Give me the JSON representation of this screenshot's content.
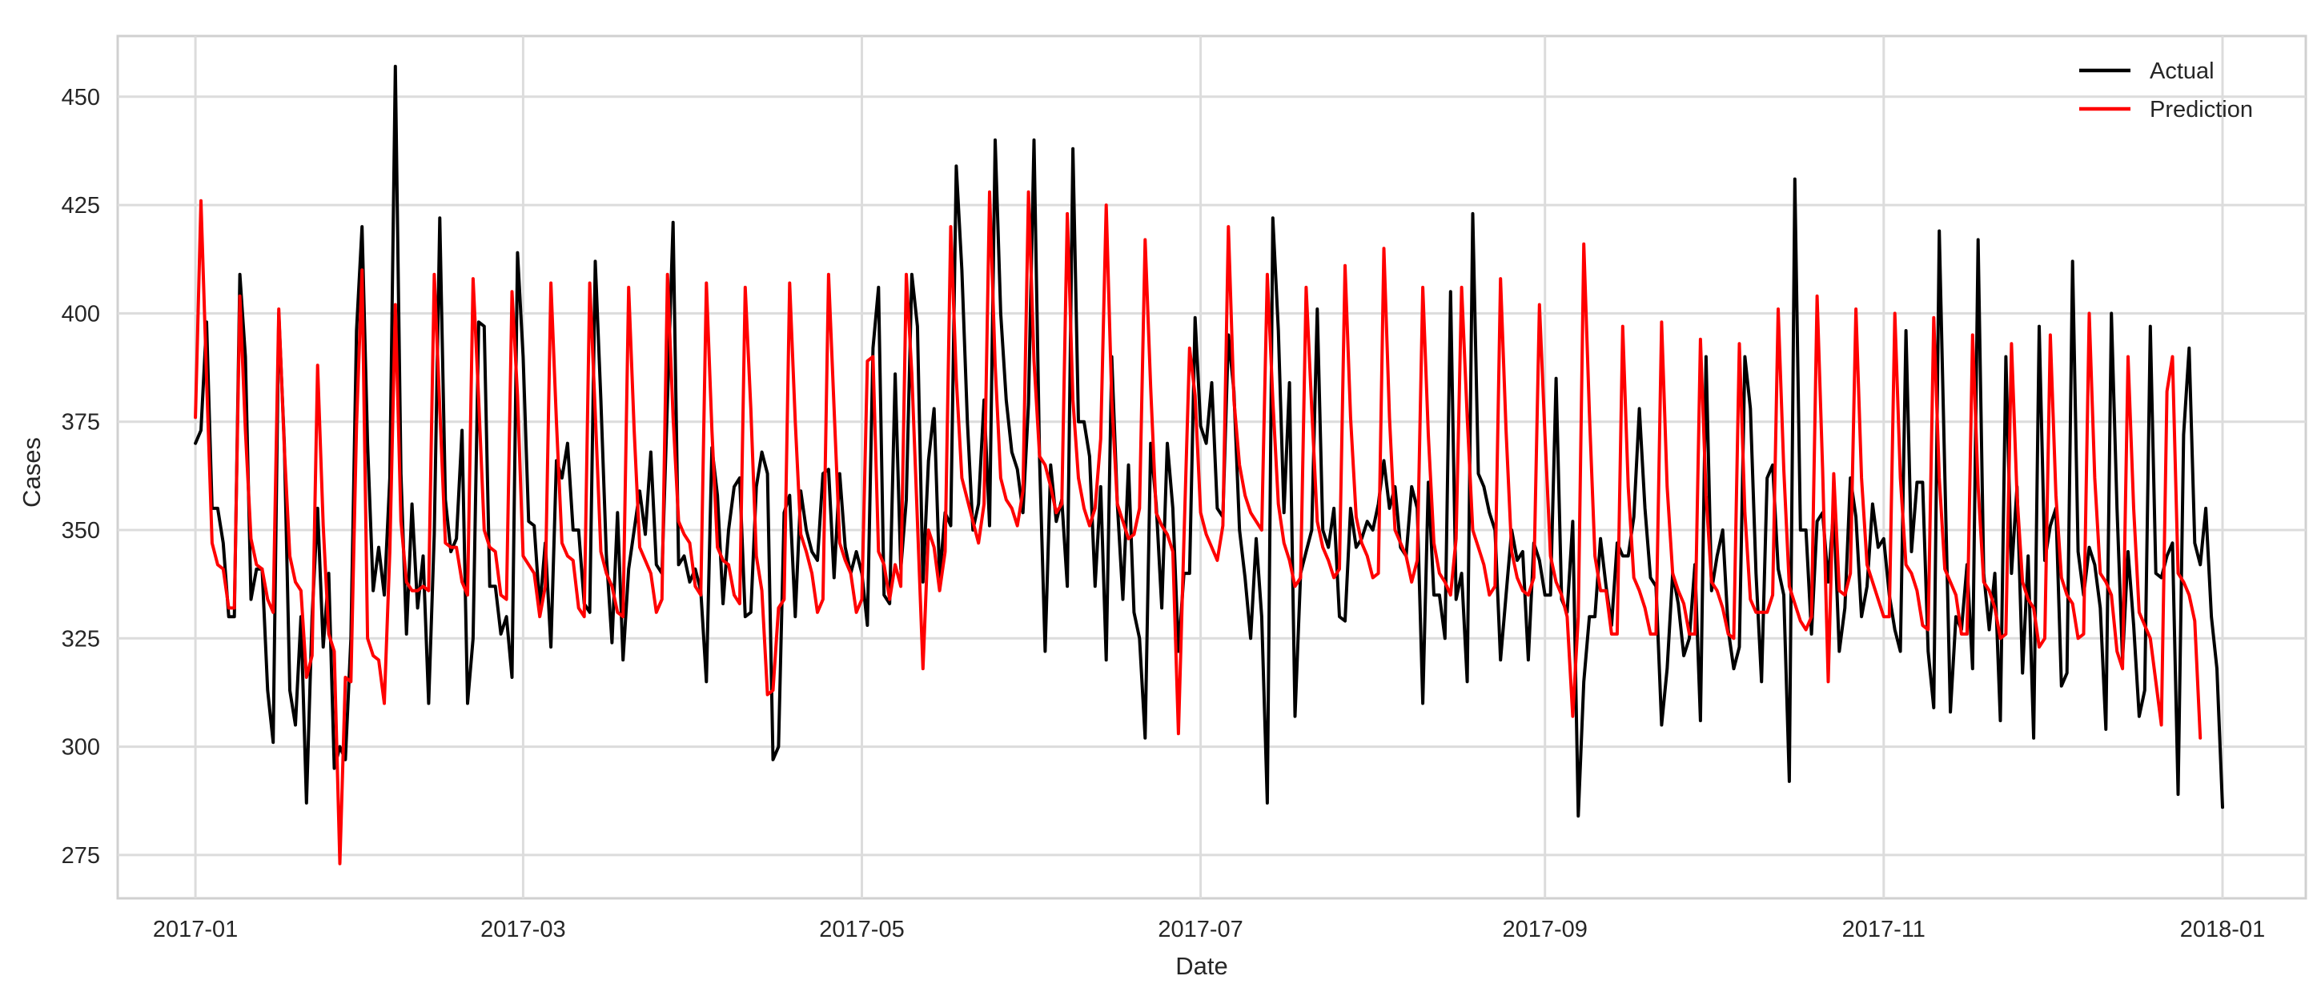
{
  "chart_data": {
    "type": "line",
    "title": "",
    "xlabel": "Date",
    "ylabel": "Cases",
    "xlim": [
      "2016-12-18",
      "2018-01-16"
    ],
    "ylim": [
      265,
      464
    ],
    "grid": true,
    "legend_position": "top-right",
    "x_ticks": [
      {
        "date": "2017-01-01",
        "label": "2017-01"
      },
      {
        "date": "2017-03-01",
        "label": "2017-03"
      },
      {
        "date": "2017-05-01",
        "label": "2017-05"
      },
      {
        "date": "2017-07-01",
        "label": "2017-07"
      },
      {
        "date": "2017-09-01",
        "label": "2017-09"
      },
      {
        "date": "2017-11-01",
        "label": "2017-11"
      },
      {
        "date": "2018-01-01",
        "label": "2018-01"
      }
    ],
    "y_ticks": [
      275,
      300,
      325,
      350,
      375,
      400,
      425,
      450
    ],
    "x_start": "2017-01-01",
    "x_step_days": 1,
    "series": [
      {
        "name": "Actual",
        "color": "#000000",
        "values": [
          370,
          373,
          398,
          355,
          355,
          347,
          330,
          330,
          409,
          390,
          334,
          341,
          341,
          313,
          301,
          400,
          370,
          313,
          305,
          330,
          287,
          330,
          355,
          323,
          340,
          295,
          300,
          297,
          325,
          396,
          420,
          370,
          336,
          346,
          335,
          362,
          457,
          363,
          326,
          356,
          332,
          344,
          310,
          349,
          422,
          357,
          345,
          348,
          373,
          310,
          325,
          398,
          397,
          337,
          337,
          326,
          330,
          316,
          414,
          390,
          352,
          351,
          332,
          347,
          323,
          366,
          362,
          370,
          350,
          350,
          333,
          331,
          412,
          380,
          344,
          324,
          354,
          320,
          341,
          350,
          359,
          349,
          368,
          342,
          340,
          380,
          421,
          342,
          344,
          338,
          341,
          336,
          315,
          369,
          358,
          333,
          350,
          360,
          362,
          330,
          331,
          360,
          368,
          363,
          297,
          300,
          354,
          358,
          330,
          359,
          350,
          345,
          343,
          363,
          364,
          339,
          363,
          346,
          340,
          345,
          340,
          328,
          392,
          406,
          335,
          333,
          386,
          341,
          357,
          409,
          397,
          338,
          366,
          378,
          339,
          354,
          351,
          434,
          410,
          375,
          350,
          356,
          380,
          351,
          440,
          400,
          380,
          368,
          364,
          354,
          379,
          440,
          366,
          322,
          365,
          352,
          357,
          337,
          438,
          375,
          375,
          367,
          337,
          360,
          320,
          390,
          356,
          334,
          365,
          331,
          325,
          302,
          370,
          356,
          332,
          370,
          355,
          322,
          340,
          340,
          399,
          374,
          370,
          384,
          355,
          353,
          395,
          382,
          350,
          339,
          325,
          348,
          330,
          287,
          422,
          396,
          354,
          384,
          307,
          340,
          345,
          350,
          401,
          350,
          346,
          355,
          330,
          329,
          355,
          346,
          348,
          352,
          350,
          356,
          366,
          355,
          360,
          346,
          344,
          360,
          355,
          310,
          361,
          335,
          335,
          325,
          405,
          334,
          340,
          315,
          423,
          363,
          360,
          354,
          350,
          320,
          335,
          350,
          343,
          345,
          320,
          347,
          343,
          335,
          335,
          385,
          334,
          331,
          352,
          284,
          315,
          330,
          330,
          348,
          337,
          328,
          347,
          344,
          344,
          353,
          378,
          355,
          339,
          337,
          305,
          318,
          340,
          333,
          321,
          325,
          342,
          306,
          390,
          336,
          344,
          350,
          327,
          318,
          323,
          390,
          378,
          340,
          315,
          362,
          365,
          341,
          335,
          292,
          431,
          350,
          350,
          326,
          352,
          354,
          338,
          355,
          322,
          332,
          362,
          353,
          330,
          337,
          356,
          346,
          348,
          335,
          327,
          322,
          396,
          345,
          361,
          361,
          322,
          309,
          419,
          363,
          308,
          330,
          327,
          342,
          318,
          417,
          340,
          327,
          340,
          306,
          390,
          340,
          360,
          317,
          344,
          302,
          397,
          343,
          351,
          355,
          314,
          317,
          412,
          345,
          335,
          346,
          342,
          332,
          304,
          400,
          355,
          320,
          345,
          328,
          307,
          313,
          397,
          340,
          339,
          344,
          347,
          289,
          372,
          392,
          347,
          342,
          355,
          330,
          318,
          286
        ]
      },
      {
        "name": "Prediction",
        "color": "#ff0000",
        "values": [
          376,
          426,
          385,
          347,
          342,
          341,
          332,
          332,
          404,
          373,
          348,
          342,
          341,
          334,
          331,
          401,
          369,
          344,
          338,
          336,
          316,
          321,
          388,
          351,
          326,
          322,
          273,
          316,
          315,
          374,
          410,
          325,
          321,
          320,
          310,
          345,
          402,
          352,
          338,
          336,
          336,
          337,
          336,
          409,
          378,
          347,
          346,
          346,
          338,
          335,
          408,
          380,
          350,
          346,
          345,
          335,
          334,
          405,
          381,
          344,
          342,
          340,
          330,
          337,
          407,
          375,
          347,
          344,
          343,
          332,
          330,
          407,
          377,
          345,
          340,
          337,
          331,
          330,
          406,
          373,
          346,
          343,
          340,
          331,
          334,
          409,
          376,
          352,
          349,
          347,
          337,
          335,
          407,
          373,
          346,
          343,
          342,
          335,
          333,
          406,
          378,
          344,
          336,
          312,
          313,
          332,
          334,
          407,
          375,
          349,
          345,
          340,
          331,
          334,
          409,
          378,
          347,
          343,
          340,
          331,
          334,
          389,
          390,
          345,
          342,
          334,
          342,
          337,
          409,
          386,
          352,
          318,
          350,
          346,
          336,
          345,
          420,
          385,
          362,
          357,
          352,
          347,
          356,
          428,
          388,
          362,
          357,
          355,
          351,
          359,
          428,
          389,
          367,
          365,
          360,
          354,
          356,
          423,
          380,
          362,
          355,
          351,
          355,
          371,
          425,
          380,
          356,
          352,
          348,
          349,
          355,
          417,
          383,
          354,
          351,
          349,
          345,
          303,
          348,
          392,
          381,
          354,
          349,
          346,
          343,
          351,
          420,
          380,
          365,
          358,
          354,
          352,
          350,
          409,
          380,
          356,
          347,
          343,
          337,
          339,
          406,
          378,
          352,
          346,
          343,
          339,
          341,
          411,
          376,
          353,
          347,
          344,
          339,
          340,
          415,
          376,
          350,
          347,
          344,
          338,
          343,
          406,
          372,
          347,
          340,
          338,
          335,
          348,
          406,
          376,
          350,
          346,
          342,
          335,
          337,
          408,
          373,
          345,
          339,
          336,
          335,
          339,
          402,
          372,
          344,
          338,
          335,
          330,
          307,
          330,
          416,
          377,
          344,
          336,
          336,
          326,
          326,
          397,
          360,
          339,
          336,
          332,
          326,
          326,
          398,
          360,
          340,
          336,
          333,
          326,
          326,
          394,
          358,
          338,
          336,
          332,
          326,
          325,
          393,
          354,
          334,
          331,
          331,
          331,
          335,
          401,
          364,
          337,
          333,
          329,
          327,
          330,
          404,
          364,
          315,
          363,
          336,
          335,
          340,
          401,
          362,
          342,
          338,
          334,
          330,
          330,
          400,
          362,
          342,
          340,
          336,
          328,
          327,
          399,
          362,
          341,
          338,
          335,
          326,
          326,
          395,
          360,
          338,
          336,
          332,
          325,
          326,
          393,
          358,
          338,
          334,
          332,
          323,
          325,
          395,
          358,
          339,
          335,
          333,
          325,
          326,
          400,
          362,
          340,
          338,
          335,
          322,
          318,
          390,
          355,
          331,
          328,
          325,
          315,
          305,
          382,
          390,
          340,
          338,
          335,
          329,
          302
        ]
      }
    ]
  }
}
